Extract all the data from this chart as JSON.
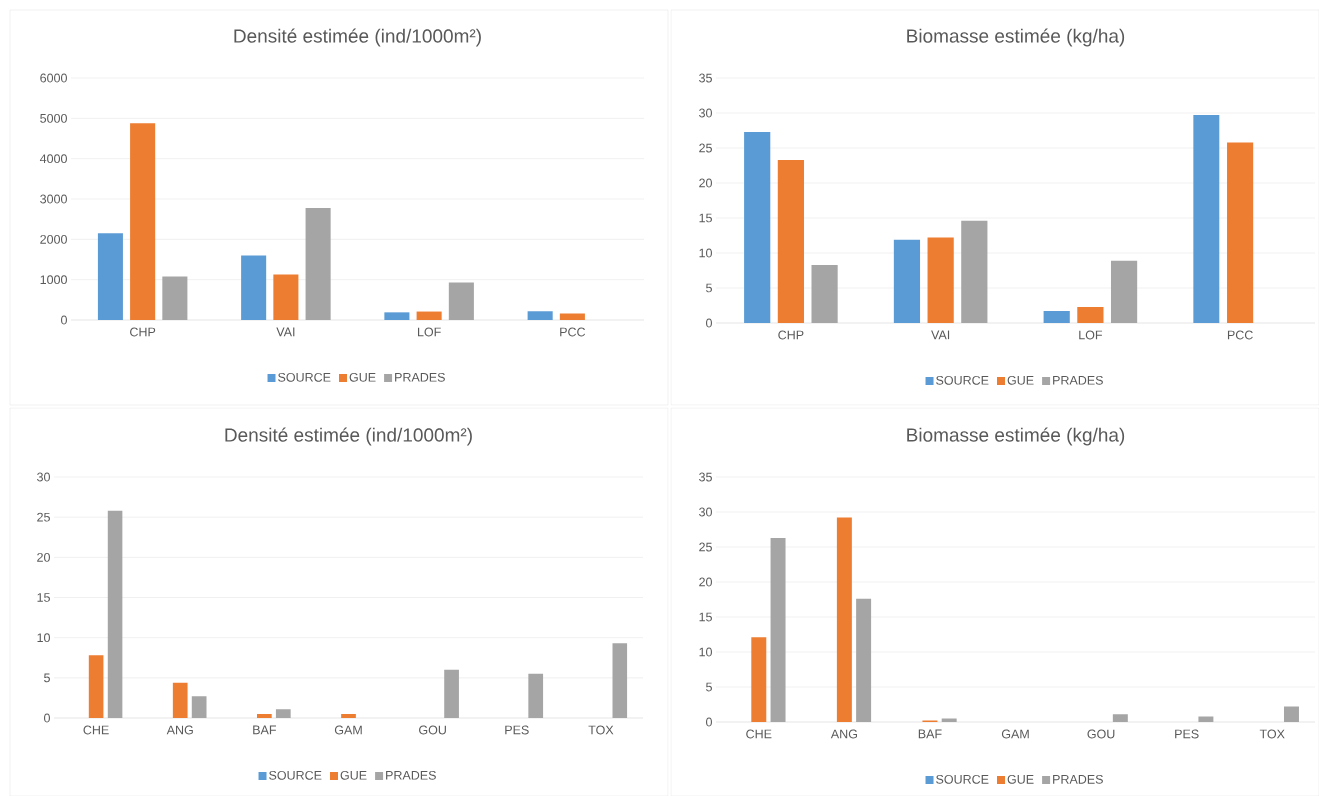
{
  "chart_data": [
    {
      "type": "bar",
      "title": "Densité estimée (ind/1000m²)",
      "categories": [
        "CHP",
        "VAI",
        "LOF",
        "PCC"
      ],
      "series": [
        {
          "name": "SOURCE",
          "color": "#5b9bd5",
          "values": [
            2150,
            1600,
            190,
            220
          ]
        },
        {
          "name": "GUE",
          "color": "#ed7d31",
          "values": [
            4880,
            1130,
            210,
            160
          ]
        },
        {
          "name": "PRADES",
          "color": "#a5a5a5",
          "values": [
            1080,
            2780,
            930,
            0
          ]
        }
      ],
      "ylim": [
        0,
        6000
      ],
      "yticks": [
        0,
        1000,
        2000,
        3000,
        4000,
        5000,
        6000
      ],
      "grid": "y",
      "legend": "bottom"
    },
    {
      "type": "bar",
      "title": "Biomasse estimée (kg/ha)",
      "categories": [
        "CHP",
        "VAI",
        "LOF",
        "PCC"
      ],
      "series": [
        {
          "name": "SOURCE",
          "color": "#5b9bd5",
          "values": [
            27.3,
            11.9,
            1.7,
            29.7
          ]
        },
        {
          "name": "GUE",
          "color": "#ed7d31",
          "values": [
            23.3,
            12.2,
            2.3,
            25.8
          ]
        },
        {
          "name": "PRADES",
          "color": "#a5a5a5",
          "values": [
            8.3,
            14.6,
            8.9,
            0
          ]
        }
      ],
      "ylim": [
        0,
        35
      ],
      "yticks": [
        0,
        5,
        10,
        15,
        20,
        25,
        30,
        35
      ],
      "grid": "y",
      "legend": "bottom"
    },
    {
      "type": "bar",
      "title": "Densité estimée (ind/1000m²)",
      "categories": [
        "CHE",
        "ANG",
        "BAF",
        "GAM",
        "GOU",
        "PES",
        "TOX"
      ],
      "series": [
        {
          "name": "SOURCE",
          "color": "#5b9bd5",
          "values": [
            0,
            0,
            0,
            0,
            0,
            0,
            0
          ]
        },
        {
          "name": "GUE",
          "color": "#ed7d31",
          "values": [
            7.8,
            4.4,
            0.5,
            0.5,
            0,
            0,
            0
          ]
        },
        {
          "name": "PRADES",
          "color": "#a5a5a5",
          "values": [
            25.8,
            2.7,
            1.1,
            0,
            6.0,
            5.5,
            9.3
          ]
        }
      ],
      "ylim": [
        0,
        30
      ],
      "yticks": [
        0,
        5,
        10,
        15,
        20,
        25,
        30
      ],
      "grid": "y",
      "legend": "bottom"
    },
    {
      "type": "bar",
      "title": "Biomasse estimée (kg/ha)",
      "categories": [
        "CHE",
        "ANG",
        "BAF",
        "GAM",
        "GOU",
        "PES",
        "TOX"
      ],
      "series": [
        {
          "name": "SOURCE",
          "color": "#5b9bd5",
          "values": [
            0,
            0,
            0,
            0,
            0,
            0,
            0
          ]
        },
        {
          "name": "GUE",
          "color": "#ed7d31",
          "values": [
            12.1,
            29.2,
            0.2,
            0,
            0,
            0,
            0
          ]
        },
        {
          "name": "PRADES",
          "color": "#a5a5a5",
          "values": [
            26.3,
            17.6,
            0.5,
            0,
            1.1,
            0.8,
            2.2
          ]
        }
      ],
      "ylim": [
        0,
        35
      ],
      "yticks": [
        0,
        5,
        10,
        15,
        20,
        25,
        30,
        35
      ],
      "grid": "y",
      "legend": "bottom"
    }
  ]
}
